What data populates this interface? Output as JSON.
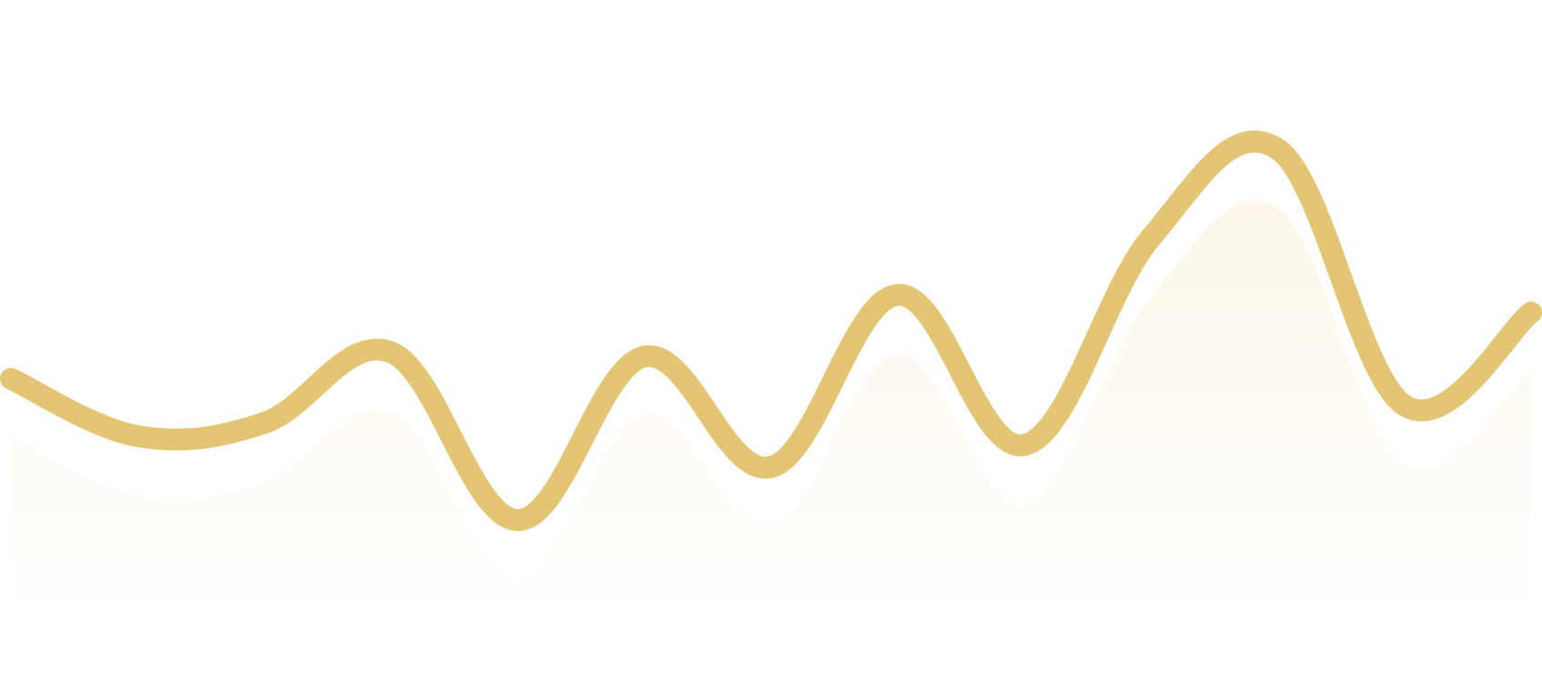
{
  "chart_data": {
    "type": "area",
    "x": [
      0,
      1,
      2,
      3,
      4,
      5,
      6,
      7,
      8,
      9,
      10,
      11,
      12
    ],
    "values": [
      16,
      3,
      6,
      22,
      -16,
      21,
      -4,
      35,
      1,
      48,
      68,
      10,
      31
    ],
    "ylim": [
      -30,
      75
    ],
    "grid": false,
    "smooth": true,
    "colors": {
      "line": "#e4c573",
      "area": "#fcf7ea"
    }
  }
}
